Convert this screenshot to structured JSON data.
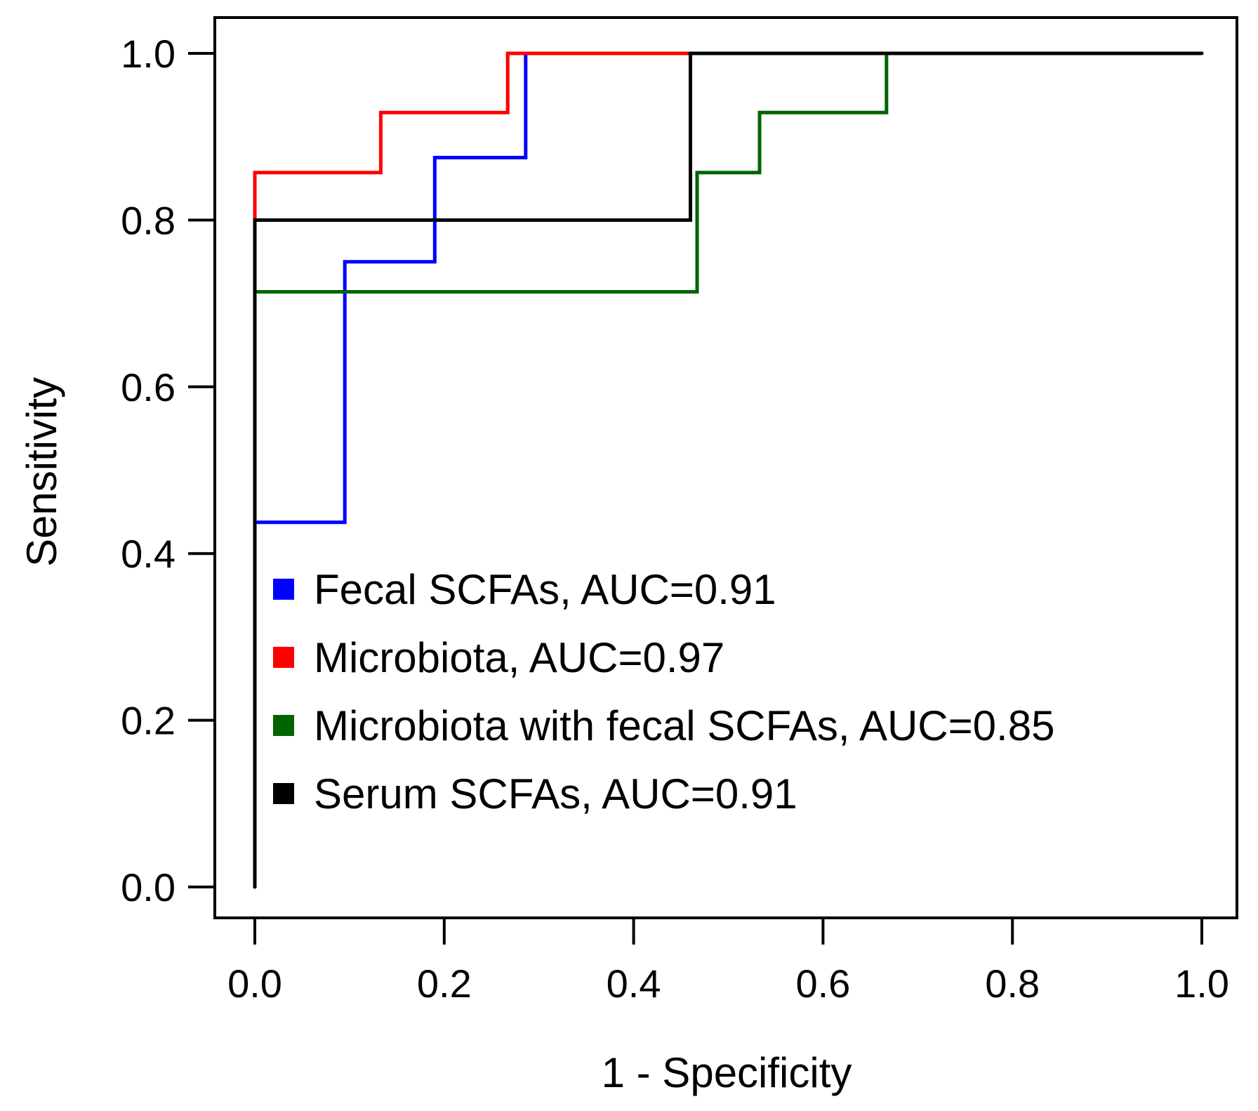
{
  "chart_data": {
    "type": "line",
    "title": "",
    "xlabel": "1 - Specificity",
    "ylabel": "Sensitivity",
    "xlim": [
      0,
      1
    ],
    "ylim": [
      0,
      1
    ],
    "xticks": [
      "0.0",
      "0.2",
      "0.4",
      "0.6",
      "0.8",
      "1.0"
    ],
    "yticks": [
      "0.0",
      "0.2",
      "0.4",
      "0.6",
      "0.8",
      "1.0"
    ],
    "grid": false,
    "legend_position": "bottom-left",
    "series": [
      {
        "name": "Fecal SCFAs, AUC=0.91",
        "color": "#0000ff",
        "x": [
          0,
          0,
          0.095,
          0.095,
          0.19,
          0.19,
          0.286,
          0.286
        ],
        "y": [
          0,
          0.4375,
          0.4375,
          0.75,
          0.75,
          0.875,
          0.875,
          1.0
        ]
      },
      {
        "name": "Microbiota, AUC=0.97",
        "color": "#ff0000",
        "x": [
          0,
          0,
          0.133,
          0.133,
          0.267,
          0.267,
          0.46
        ],
        "y": [
          0.8,
          0.857,
          0.857,
          0.929,
          0.929,
          1.0,
          1.0
        ]
      },
      {
        "name": "Microbiota with fecal SCFAs, AUC=0.85",
        "color": "#006400",
        "x": [
          0,
          0,
          0.467,
          0.467,
          0.533,
          0.533,
          0.667,
          0.667,
          0.8
        ],
        "y": [
          0.69,
          0.714,
          0.714,
          0.857,
          0.857,
          0.929,
          0.929,
          1.0,
          1.0
        ]
      },
      {
        "name": "Serum SCFAs, AUC=0.91",
        "color": "#000000",
        "x": [
          0,
          0,
          0.46,
          0.46,
          1.0
        ],
        "y": [
          0,
          0.8,
          0.8,
          1.0,
          1.0
        ]
      }
    ]
  }
}
